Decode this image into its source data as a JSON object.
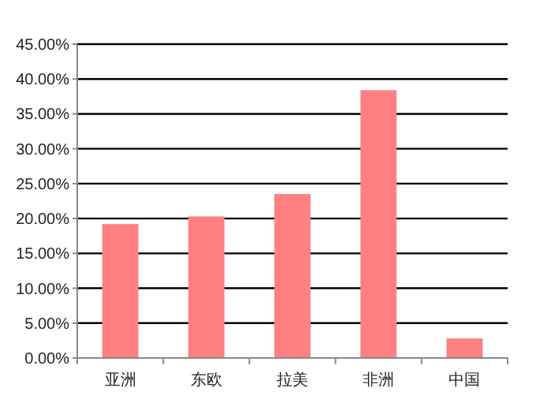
{
  "chart_data": {
    "type": "bar",
    "categories": [
      "亚洲",
      "东欧",
      "拉美",
      "非洲",
      "中国"
    ],
    "values": [
      19.2,
      20.3,
      23.5,
      38.4,
      2.8
    ],
    "color": "#ff8080",
    "ylim": [
      0,
      45
    ],
    "yticks": [
      {
        "value": 0,
        "label": "0.00%"
      },
      {
        "value": 5,
        "label": "5.00%"
      },
      {
        "value": 10,
        "label": "10.00%"
      },
      {
        "value": 15,
        "label": "15.00%"
      },
      {
        "value": 20,
        "label": "20.00%"
      },
      {
        "value": 25,
        "label": "25.00%"
      },
      {
        "value": 30,
        "label": "30.00%"
      },
      {
        "value": 35,
        "label": "35.00%"
      },
      {
        "value": 40,
        "label": "40.00%"
      },
      {
        "value": 45,
        "label": "45.00%"
      }
    ],
    "grid": "y"
  }
}
